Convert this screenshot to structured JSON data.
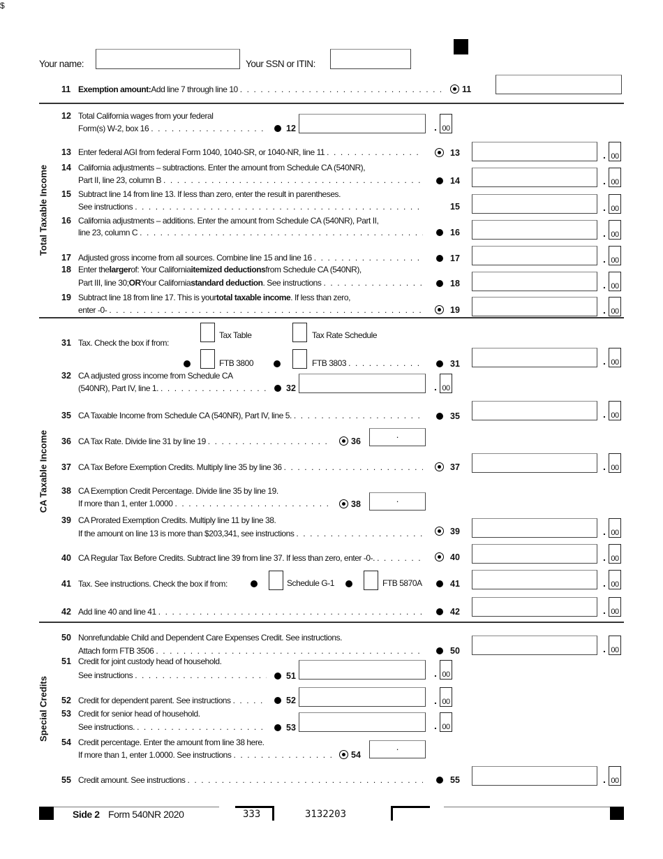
{
  "header": {
    "name_label": "Your name:",
    "ssn_label": "Your SSN or ITIN:"
  },
  "sections": [
    "Total Taxable Income",
    "CA Taxable Income",
    "Special Credits"
  ],
  "cents": "00",
  "decimal": ".",
  "dollar": "$",
  "lines": [
    {
      "num": "11",
      "marker": "circle",
      "text": [
        [
          {
            "t": "Exemption amount:",
            "b": true
          },
          {
            "t": " Add line 7 through line 10"
          }
        ]
      ],
      "leader": true
    },
    {
      "num": "12",
      "marker": "bullet",
      "text": [
        [
          {
            "t": "Total California wages from your federal"
          }
        ],
        [
          {
            "t": "Form(s) W-2, box 16"
          }
        ]
      ],
      "leader": true
    },
    {
      "num": "13",
      "marker": "circle",
      "text": [
        [
          {
            "t": "Enter federal AGI from federal Form 1040, 1040-SR, or 1040-NR, line 11"
          }
        ]
      ],
      "leader": true
    },
    {
      "num": "14",
      "marker": "bullet",
      "text": [
        [
          {
            "t": "California adjustments – subtractions. Enter the amount from Schedule CA (540NR),"
          }
        ],
        [
          {
            "t": "Part II, line 23, column B"
          }
        ]
      ],
      "leader": true
    },
    {
      "num": "15",
      "marker": "none",
      "text": [
        [
          {
            "t": "Subtract line 14 from line 13. If less than zero, enter the result in parentheses."
          }
        ],
        [
          {
            "t": "See instructions"
          }
        ]
      ],
      "leader": true
    },
    {
      "num": "16",
      "marker": "bullet",
      "text": [
        [
          {
            "t": "California adjustments – additions. Enter the amount from Schedule CA (540NR), Part II,"
          }
        ],
        [
          {
            "t": "line 23, column C"
          }
        ]
      ],
      "leader": true
    },
    {
      "num": "17",
      "marker": "bullet",
      "text": [
        [
          {
            "t": "Adjusted gross income from all sources. Combine line 15 and line 16"
          }
        ]
      ],
      "leader": true
    },
    {
      "num": "18",
      "marker": "bullet",
      "text": [
        [
          {
            "t": "Enter the "
          },
          {
            "t": "larger",
            "b": true
          },
          {
            "t": " of: Your California "
          },
          {
            "t": "itemized deductions",
            "b": true
          },
          {
            "t": " from Schedule CA (540NR),"
          }
        ],
        [
          {
            "t": "Part III, line 30; "
          },
          {
            "t": "OR",
            "b": true
          },
          {
            "t": " Your California "
          },
          {
            "t": "standard deduction",
            "b": true
          },
          {
            "t": ". See instructions"
          }
        ]
      ],
      "leader": true
    },
    {
      "num": "19",
      "marker": "circle",
      "text": [
        [
          {
            "t": "Subtract line 18 from line 17. This is your "
          },
          {
            "t": "total taxable income",
            "b": true
          },
          {
            "t": ". If less than zero,"
          }
        ],
        [
          {
            "t": "enter -0-"
          }
        ]
      ],
      "leader": true
    },
    {
      "num": "31",
      "marker": "bullet",
      "text": [
        [
          {
            "t": "Tax. Check the box if from:"
          }
        ]
      ],
      "leader": false,
      "checkboxes": [
        {
          "label": "Tax Table",
          "bullet": false
        },
        {
          "label": "Tax Rate Schedule",
          "bullet": false
        },
        {
          "label": "FTB 3800",
          "bullet": true
        },
        {
          "label": "FTB 3803",
          "bullet": true
        }
      ]
    },
    {
      "num": "32",
      "marker": "bullet",
      "text": [
        [
          {
            "t": "CA adjusted gross income from Schedule CA"
          }
        ],
        [
          {
            "t": "(540NR), Part IV, line 1."
          }
        ]
      ],
      "leader": true
    },
    {
      "num": "35",
      "marker": "bullet",
      "text": [
        [
          {
            "t": "CA Taxable Income from Schedule CA (540NR), Part IV, line 5."
          }
        ]
      ],
      "leader": true
    },
    {
      "num": "36",
      "marker": "circle",
      "text": [
        [
          {
            "t": "CA Tax Rate. Divide line 31 by line 19"
          }
        ]
      ],
      "leader": true
    },
    {
      "num": "37",
      "marker": "circle",
      "text": [
        [
          {
            "t": "CA Tax Before Exemption Credits. Multiply line 35 by line 36"
          }
        ]
      ],
      "leader": true
    },
    {
      "num": "38",
      "marker": "circle",
      "text": [
        [
          {
            "t": "CA Exemption Credit Percentage. Divide line 35 by line 19."
          }
        ],
        [
          {
            "t": "If more than 1, enter 1.0000"
          }
        ]
      ],
      "leader": true
    },
    {
      "num": "39",
      "marker": "circle",
      "text": [
        [
          {
            "t": "CA Prorated Exemption Credits. Multiply line 11 by line 38."
          }
        ],
        [
          {
            "t": "If the amount on line 13 is more than $203,341, see instructions"
          }
        ]
      ],
      "leader": true
    },
    {
      "num": "40",
      "marker": "circle",
      "text": [
        [
          {
            "t": "CA Regular Tax Before Credits. Subtract line 39 from line 37. If less than zero, enter -0-."
          }
        ]
      ],
      "leader": true
    },
    {
      "num": "41",
      "marker": "bullet",
      "text": [
        [
          {
            "t": "Tax. See instructions. Check the box if from:"
          }
        ]
      ],
      "leader": false,
      "checkboxes": [
        {
          "label": "Schedule G-1",
          "bullet": true
        },
        {
          "label": "FTB 5870A",
          "bullet": true
        }
      ]
    },
    {
      "num": "42",
      "marker": "bullet",
      "text": [
        [
          {
            "t": "Add line 40 and line 41"
          }
        ]
      ],
      "leader": true
    },
    {
      "num": "50",
      "marker": "bullet",
      "text": [
        [
          {
            "t": "Nonrefundable Child and Dependent Care Expenses Credit. See instructions."
          }
        ],
        [
          {
            "t": "Attach form FTB 3506"
          }
        ]
      ],
      "leader": true
    },
    {
      "num": "51",
      "marker": "bullet",
      "text": [
        [
          {
            "t": "Credit for joint custody head of household."
          }
        ],
        [
          {
            "t": "See instructions"
          }
        ]
      ],
      "leader": true
    },
    {
      "num": "52",
      "marker": "bullet",
      "text": [
        [
          {
            "t": "Credit for dependent parent. See instructions"
          }
        ]
      ],
      "leader": true
    },
    {
      "num": "53",
      "marker": "bullet",
      "text": [
        [
          {
            "t": "Credit for senior head of household."
          }
        ],
        [
          {
            "t": "See instructions."
          }
        ]
      ],
      "leader": true
    },
    {
      "num": "54",
      "marker": "circle",
      "text": [
        [
          {
            "t": "Credit percentage. Enter the amount from line 38 here."
          }
        ],
        [
          {
            "t": "If more than 1, enter 1.0000. See instructions"
          }
        ]
      ],
      "leader": true
    },
    {
      "num": "55",
      "marker": "bullet",
      "text": [
        [
          {
            "t": "Credit amount. See instructions"
          }
        ]
      ],
      "leader": true
    }
  ],
  "footer": {
    "side": "Side 2",
    "form": "Form 540NR 2020",
    "code1": "333",
    "code2": "3132203"
  }
}
